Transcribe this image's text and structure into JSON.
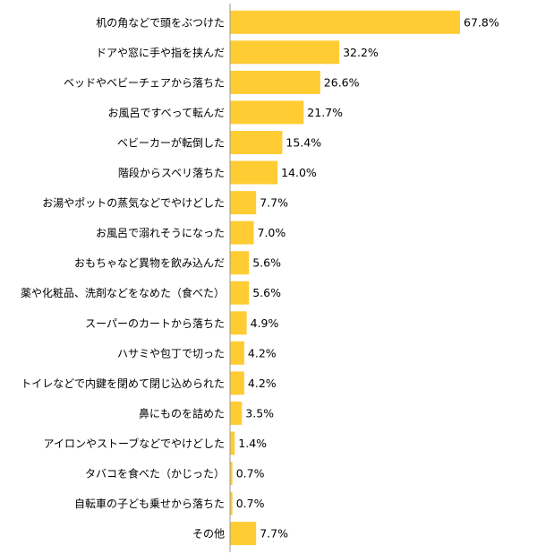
{
  "chart_data": {
    "type": "bar",
    "orientation": "horizontal",
    "bar_color": "#FFCC33",
    "axis_color": "#999999",
    "value_suffix": "%",
    "xlim": [
      0,
      67.8
    ],
    "grid": false,
    "categories": [
      "机の角などで頭をぶつけた",
      "ドアや窓に手や指を挟んだ",
      "ベッドやベビーチェアから落ちた",
      "お風呂ですべって転んだ",
      "ベビーカーが転倒した",
      "階段からスベリ落ちた",
      "お湯やポットの蒸気などでやけどした",
      "お風呂で溺れそうになった",
      "おもちゃなど異物を飲み込んだ",
      "薬や化粧品、洗剤などをなめた（食べた）",
      "スーパーのカートから落ちた",
      "ハサミや包丁で切った",
      "トイレなどで内鍵を閉めて閉じ込められた",
      "鼻にものを詰めた",
      "アイロンやストーブなどでやけどした",
      "タバコを食べた（かじった）",
      "自転車の子ども乗せから落ちた",
      "その他"
    ],
    "values": [
      67.8,
      32.2,
      26.6,
      21.7,
      15.4,
      14.0,
      7.7,
      7.0,
      5.6,
      5.6,
      4.9,
      4.2,
      4.2,
      3.5,
      1.4,
      0.7,
      0.7,
      7.7
    ]
  }
}
